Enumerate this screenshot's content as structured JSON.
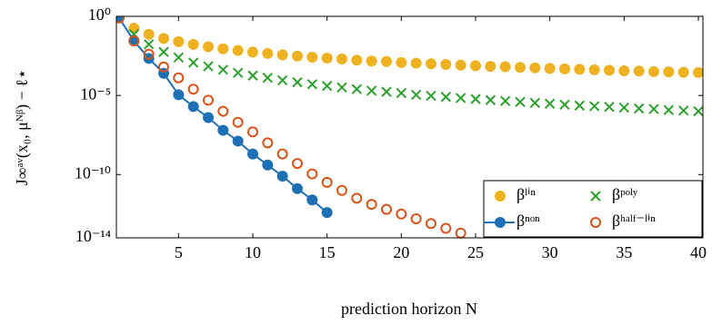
{
  "chart_data": {
    "type": "scatter",
    "xlabel": "prediction horizon N",
    "ylabel": "J∞ᵃᵛ(x₀, μᴺᵝ) − ℓ⋆",
    "x": [
      1,
      2,
      3,
      4,
      5,
      6,
      7,
      8,
      9,
      10,
      11,
      12,
      13,
      14,
      15,
      16,
      17,
      18,
      19,
      20,
      21,
      22,
      23,
      24,
      25,
      26,
      27,
      28,
      29,
      30,
      31,
      32,
      33,
      34,
      35,
      36,
      37,
      38,
      39,
      40
    ],
    "xlim": [
      1,
      40
    ],
    "xticks": [
      5,
      10,
      15,
      20,
      25,
      30,
      35,
      40
    ],
    "ylog": true,
    "ylim": [
      1e-14,
      1
    ],
    "yticks": [
      {
        "value": 1,
        "label": "10⁰"
      },
      {
        "value": 1e-05,
        "label": "10⁻⁵"
      },
      {
        "value": 1e-10,
        "label": "10⁻¹⁰"
      },
      {
        "value": 1e-14,
        "label": "10⁻¹⁴"
      }
    ],
    "legend": "lower right",
    "series": [
      {
        "name": "βˡⁱⁿ",
        "color": "#eeb220",
        "marker": "filled-circle",
        "line": false,
        "values": [
          0.79,
          0.18,
          0.074,
          0.04,
          0.025,
          0.017,
          0.012,
          0.0089,
          0.0069,
          0.0055,
          0.0045,
          0.0037,
          0.0031,
          0.0026,
          0.0023,
          0.002,
          0.0017,
          0.0015,
          0.0014,
          0.0012,
          0.0011,
          0.001,
          0.00091,
          0.00083,
          0.00076,
          0.00069,
          0.00065,
          0.00059,
          0.00055,
          0.00051,
          0.00048,
          0.00045,
          0.00042,
          0.00039,
          0.00036,
          0.00035,
          0.00032,
          0.00031,
          0.00029,
          0.00028
        ]
      },
      {
        "name": "βᵖᵒˡʸ",
        "color": "#2ca02c",
        "marker": "cross",
        "line": false,
        "values": [
          null,
          0.074,
          0.017,
          0.0056,
          0.0025,
          0.0012,
          0.00069,
          0.00042,
          0.00027,
          0.00018,
          0.00013,
          9.1e-05,
          6.8e-05,
          5.1e-05,
          4e-05,
          3.2e-05,
          2.5e-05,
          2e-05,
          1.7e-05,
          1.4e-05,
          1.1e-05,
          9.5e-06,
          8.1e-06,
          6.9e-06,
          5.9e-06,
          5.1e-06,
          4.5e-06,
          3.9e-06,
          3.4e-06,
          3e-06,
          2.6e-06,
          2.3e-06,
          2.1e-06,
          1.9e-06,
          1.7e-06,
          1.5e-06,
          1.4e-06,
          1.2e-06,
          1.1e-06,
          1e-06
        ]
      },
      {
        "name": "βⁿᵒⁿ",
        "color": "#1f6fb5",
        "marker": "filled-circle",
        "line": true,
        "values": [
          0.8,
          0.028,
          0.0022,
          0.00025,
          1.1e-05,
          2e-06,
          4e-07,
          6.3e-08,
          1.3e-08,
          2e-09,
          4e-10,
          8e-11,
          1.3e-11,
          2.5e-12,
          4e-13,
          null,
          null,
          null,
          null,
          null,
          null,
          null,
          null,
          null,
          null,
          null,
          null,
          null,
          null,
          null,
          null,
          null,
          null,
          null,
          null,
          null,
          null,
          null,
          null,
          null
        ]
      },
      {
        "name": "βʰᵃˡᶠ⁻ˡⁱⁿ",
        "color": "#d95319",
        "marker": "open-circle",
        "line": false,
        "values": [
          0.8,
          0.028,
          0.004,
          0.00063,
          0.00013,
          2.5e-05,
          5e-06,
          1e-06,
          2e-07,
          5e-08,
          1e-08,
          2e-09,
          5e-10,
          1.1e-10,
          3.2e-11,
          1e-11,
          3.2e-12,
          1.3e-12,
          6.3e-13,
          3.2e-13,
          1.6e-13,
          8e-14,
          4e-14,
          2e-14,
          null,
          null,
          null,
          null,
          null,
          null,
          null,
          null,
          null,
          null,
          null,
          null,
          null,
          null,
          null,
          null
        ]
      }
    ]
  }
}
